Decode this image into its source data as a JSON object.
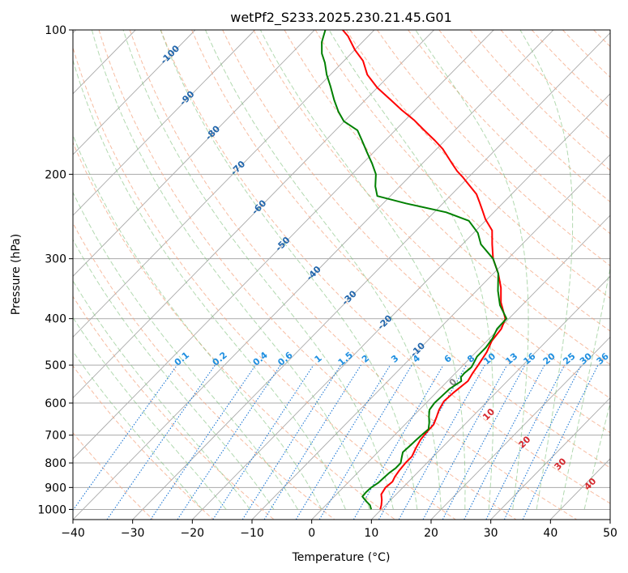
{
  "chart_data": {
    "type": "line",
    "subtype": "skew-t log-p diagram",
    "title": "wetPf2_S233.2025.230.21.45.G01",
    "xlabel": "Temperature (°C)",
    "ylabel": "Pressure (hPa)",
    "xlim": [
      -40,
      50
    ],
    "ylim": [
      1050,
      100
    ],
    "x_ticks": [
      "−40",
      "−30",
      "−20",
      "−10",
      "0",
      "10",
      "20",
      "30",
      "40",
      "50"
    ],
    "y_ticks": [
      "100",
      "200",
      "300",
      "400",
      "500",
      "600",
      "700",
      "800",
      "900",
      "1000"
    ],
    "y_tick_values": [
      100,
      200,
      300,
      400,
      500,
      600,
      700,
      800,
      900,
      1000
    ],
    "grid": true,
    "series": [
      {
        "name": "Temperature",
        "color": "#ff0000",
        "points": [
          [
            9.8,
            1000
          ],
          [
            9.3,
            980
          ],
          [
            8.5,
            955
          ],
          [
            7.5,
            930
          ],
          [
            7.1,
            900
          ],
          [
            7.3,
            875
          ],
          [
            6.9,
            855
          ],
          [
            6.6,
            830
          ],
          [
            6.4,
            800
          ],
          [
            6.4,
            775
          ],
          [
            5.7,
            745
          ],
          [
            5.1,
            715
          ],
          [
            4.9,
            690
          ],
          [
            4.8,
            665
          ],
          [
            4.0,
            640
          ],
          [
            3.3,
            620
          ],
          [
            2.7,
            595
          ],
          [
            2.9,
            570
          ],
          [
            3.4,
            540
          ],
          [
            2.9,
            520
          ],
          [
            2.5,
            500
          ],
          [
            1.8,
            470
          ],
          [
            0.8,
            445
          ],
          [
            0.4,
            420
          ],
          [
            -0.6,
            400
          ],
          [
            -4.0,
            370
          ],
          [
            -6.4,
            345
          ],
          [
            -9.2,
            322
          ],
          [
            -12.5,
            300
          ],
          [
            -15.0,
            280
          ],
          [
            -17.3,
            262
          ],
          [
            -20.3,
            248
          ],
          [
            -22.2,
            238
          ],
          [
            -24.2,
            228
          ],
          [
            -25.9,
            220
          ],
          [
            -28.8,
            210
          ],
          [
            -30.9,
            203
          ],
          [
            -32.9,
            197
          ],
          [
            -35.0,
            190
          ],
          [
            -36.8,
            184
          ],
          [
            -39.0,
            177
          ],
          [
            -41.7,
            170
          ],
          [
            -45.1,
            162
          ],
          [
            -48.6,
            154
          ],
          [
            -52.2,
            147
          ],
          [
            -55.7,
            140
          ],
          [
            -60.0,
            132
          ],
          [
            -63.8,
            124
          ],
          [
            -66.8,
            116
          ],
          [
            -70.0,
            110
          ],
          [
            -73.4,
            103
          ],
          [
            -75.3,
            100
          ]
        ]
      },
      {
        "name": "Dewpoint",
        "color": "#008000",
        "points": [
          [
            8.3,
            1000
          ],
          [
            7.4,
            980
          ],
          [
            6.0,
            960
          ],
          [
            4.7,
            940
          ],
          [
            4.6,
            920
          ],
          [
            4.7,
            900
          ],
          [
            5.1,
            880
          ],
          [
            5.2,
            860
          ],
          [
            5.3,
            840
          ],
          [
            5.6,
            820
          ],
          [
            5.6,
            800
          ],
          [
            4.9,
            780
          ],
          [
            4.2,
            760
          ],
          [
            4.3,
            740
          ],
          [
            4.4,
            720
          ],
          [
            4.5,
            700
          ],
          [
            4.7,
            680
          ],
          [
            3.8,
            660
          ],
          [
            2.7,
            640
          ],
          [
            1.7,
            620
          ],
          [
            1.4,
            600
          ],
          [
            1.5,
            580
          ],
          [
            1.6,
            560
          ],
          [
            2.3,
            540
          ],
          [
            1.6,
            530
          ],
          [
            1.5,
            520
          ],
          [
            1.7,
            505
          ],
          [
            1.4,
            495
          ],
          [
            0.9,
            480
          ],
          [
            0.9,
            460
          ],
          [
            0.5,
            440
          ],
          [
            -0.3,
            420
          ],
          [
            -0.4,
            400
          ],
          [
            -3.7,
            375
          ],
          [
            -6.4,
            350
          ],
          [
            -9.2,
            322
          ],
          [
            -12.5,
            300
          ],
          [
            -16.9,
            280
          ],
          [
            -19.3,
            265
          ],
          [
            -22.8,
            250
          ],
          [
            -28.0,
            240
          ],
          [
            -36.2,
            230
          ],
          [
            -42.2,
            222
          ],
          [
            -44.1,
            212
          ],
          [
            -46.0,
            200
          ],
          [
            -48.4,
            190
          ],
          [
            -51.1,
            180
          ],
          [
            -53.9,
            170
          ],
          [
            -56.3,
            162
          ],
          [
            -60.1,
            155
          ],
          [
            -62.6,
            148
          ],
          [
            -65.2,
            140
          ],
          [
            -68.1,
            131
          ],
          [
            -70.6,
            124
          ],
          [
            -72.9,
            117
          ],
          [
            -74.9,
            112
          ],
          [
            -76.8,
            106
          ],
          [
            -78.2,
            100
          ]
        ]
      }
    ],
    "annotations": {
      "dry_adiabats_c": [
        -100,
        -90,
        -80,
        -70,
        -60,
        -50,
        -40,
        -30,
        -20,
        -10
      ],
      "dry_adiabat_labels": [
        "-100",
        "-90",
        "-80",
        "-70",
        "-60",
        "-50",
        "-40",
        "-30",
        "-20",
        "-10"
      ],
      "moist_adiabats_c": [
        0,
        10,
        20,
        30,
        40
      ],
      "moist_adiabat_labels": [
        "0",
        "10",
        "20",
        "30",
        "40"
      ],
      "mixing_ratios_gkg": [
        0.1,
        0.2,
        0.4,
        0.6,
        1,
        1.5,
        2,
        3,
        4,
        6,
        8,
        10,
        13,
        16,
        20,
        25,
        30,
        36
      ],
      "mixing_ratio_labels": [
        "0.1",
        "0.2",
        "0.4",
        "0.6",
        "1",
        "1.5",
        "2",
        "3",
        "4",
        "6",
        "8",
        "10",
        "13",
        "16",
        "20",
        "25",
        "30",
        "36"
      ]
    },
    "colors": {
      "isotherm": "#aaaaaa",
      "dry_adiabat": "#f4a582",
      "moist_adiabat": "#7fbf7b",
      "mixing_ratio": "#1f78d4",
      "dry_label": "#2166ac",
      "moist_label": "#d6262c",
      "mixing_label": "#1f8fe0",
      "zero_moist_label": "#888888"
    }
  }
}
